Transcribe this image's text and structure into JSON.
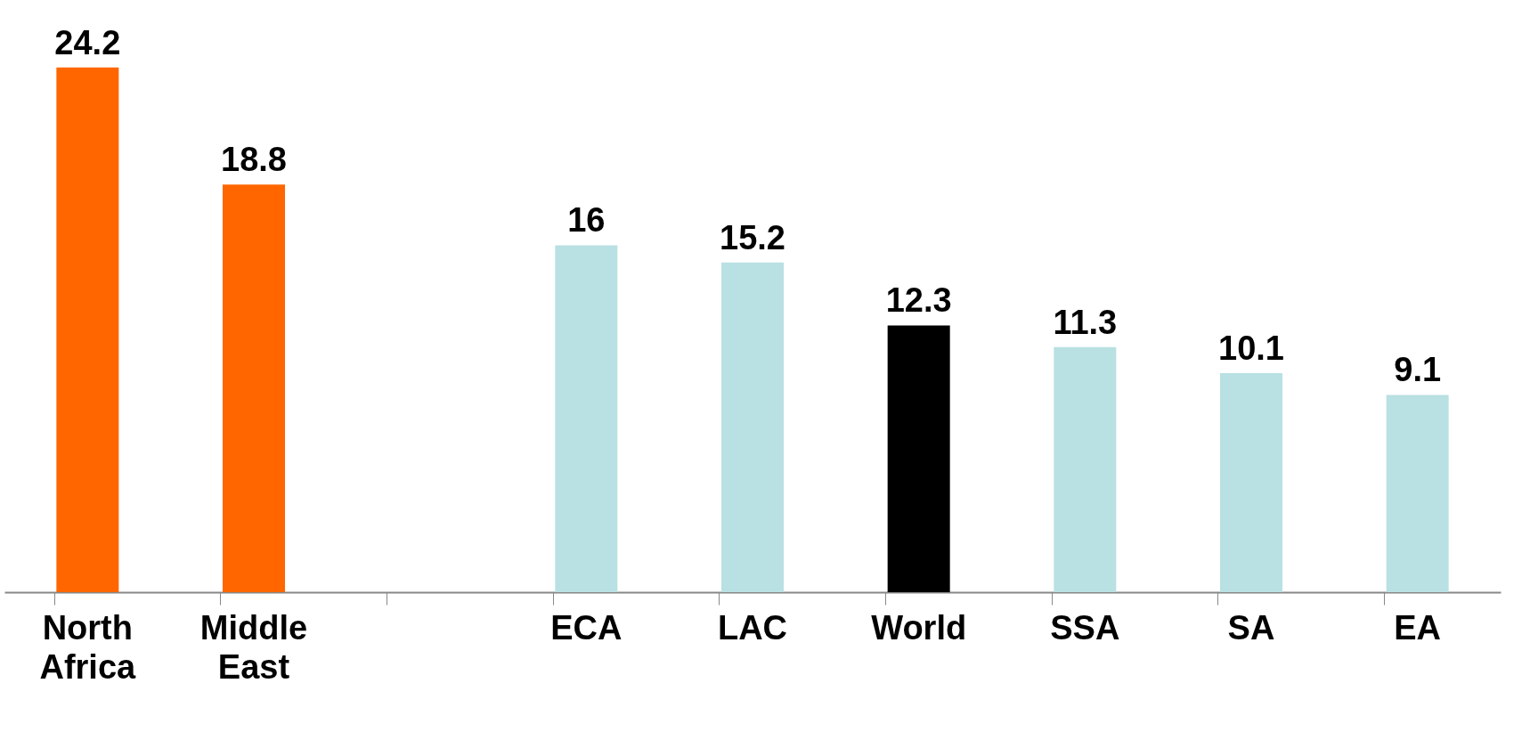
{
  "chart_data": {
    "type": "bar",
    "categories": [
      "North Africa",
      "Middle East",
      null,
      "ECA",
      "LAC",
      "World",
      "SSA",
      "SA",
      "EA"
    ],
    "values": [
      24.2,
      18.8,
      null,
      16,
      15.2,
      12.3,
      11.3,
      10.1,
      9.1
    ],
    "colors": [
      "#ff6600",
      "#ff6600",
      null,
      "#b9e0e2",
      "#b9e0e2",
      "#000000",
      "#b9e0e2",
      "#b9e0e2",
      "#b9e0e2"
    ],
    "data_labels": true
  }
}
